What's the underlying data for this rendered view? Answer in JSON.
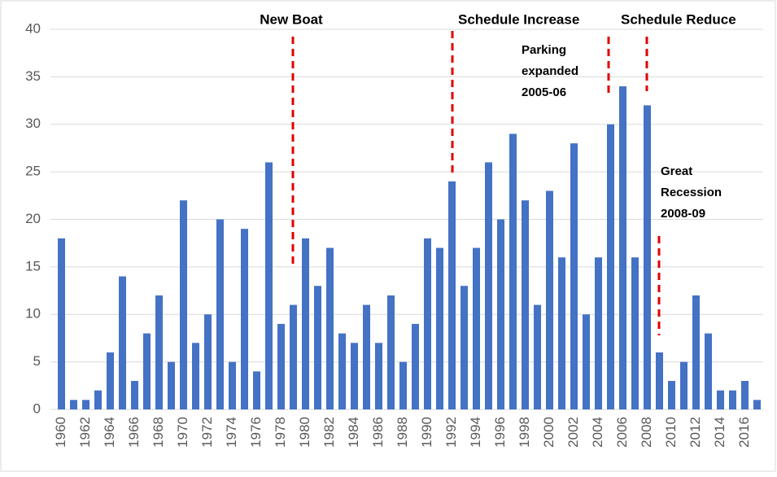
{
  "chart_data": {
    "type": "bar",
    "categories": [
      "1960",
      null,
      "1962",
      null,
      "1964",
      null,
      "1966",
      null,
      "1968",
      null,
      "1970",
      null,
      "1972",
      null,
      "1974",
      null,
      "1976",
      null,
      "1978",
      null,
      "1980",
      null,
      "1982",
      null,
      "1984",
      null,
      "1986",
      null,
      "1988",
      null,
      "1990",
      null,
      "1992",
      null,
      "1994",
      null,
      "1996",
      null,
      "1998",
      null,
      "2000",
      null,
      "2002",
      null,
      "2004",
      null,
      "2006",
      null,
      "2008",
      null,
      "2010",
      null,
      "2012",
      null,
      "2014",
      null,
      "2016",
      null
    ],
    "values": [
      18,
      1,
      1,
      2,
      6,
      14,
      3,
      8,
      12,
      5,
      22,
      7,
      10,
      20,
      5,
      19,
      4,
      26,
      9,
      11,
      18,
      13,
      17,
      8,
      7,
      11,
      7,
      12,
      5,
      9,
      18,
      17,
      24,
      13,
      17,
      26,
      20,
      29,
      22,
      11,
      23,
      16,
      28,
      10,
      16,
      30,
      34,
      16,
      32,
      6,
      3,
      5,
      12,
      8,
      2,
      2,
      3,
      1
    ],
    "color": "#4472c4",
    "ylim": [
      0,
      40
    ],
    "yticks": [
      0,
      5,
      10,
      15,
      20,
      25,
      30,
      35,
      40
    ],
    "grid": true,
    "annotations": [
      {
        "lines": [
          "New Boat"
        ]
      },
      {
        "lines": [
          "Schedule Increase"
        ]
      },
      {
        "lines": [
          "Parking",
          "expanded",
          "2005-06"
        ]
      },
      {
        "lines": [
          "Schedule Reduce"
        ]
      },
      {
        "lines": [
          "Great",
          "Recession",
          "2008-09"
        ]
      }
    ]
  }
}
